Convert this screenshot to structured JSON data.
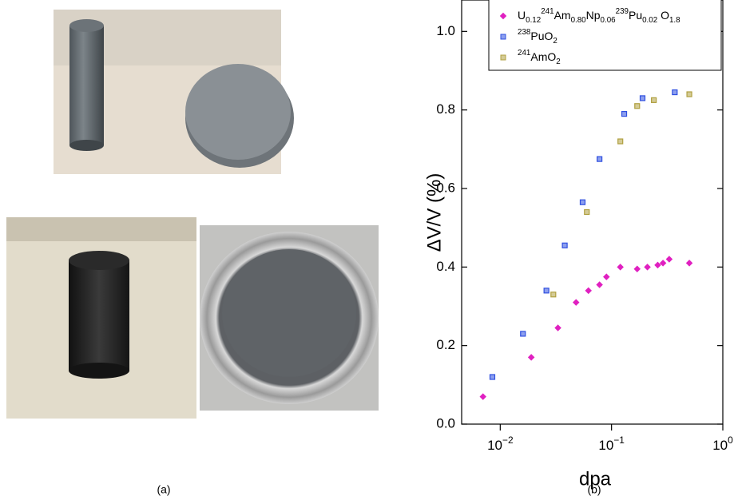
{
  "panels": {
    "a": "(a)",
    "b": "(b)"
  },
  "chart_data": {
    "type": "scatter",
    "xlabel": "dpa",
    "ylabel": "ΔV/V (%)",
    "xscale": "log",
    "xlim": [
      0.0045,
      1
    ],
    "ylim": [
      0,
      1.08
    ],
    "xticks": [
      {
        "value": 0.01,
        "label": "10^{−2}"
      },
      {
        "value": 0.1,
        "label": "10^{−1}"
      },
      {
        "value": 1,
        "label": "10^{0}"
      }
    ],
    "yticks": [
      {
        "value": 0,
        "label": "0.0"
      },
      0.2,
      0.4,
      0.6,
      0.8,
      {
        "value": 1,
        "label": "1.0"
      }
    ],
    "series": [
      {
        "name": "U_{0.12}^{241}Am_{0.80}Np_{0.06}^{239}Pu_{0.02} O_{1.8}",
        "color": "#e020c0",
        "marker": "diamond",
        "x": [
          0.007,
          0.019,
          0.033,
          0.048,
          0.062,
          0.078,
          0.09,
          0.12,
          0.17,
          0.21,
          0.26,
          0.29,
          0.33,
          0.5
        ],
        "values": [
          0.07,
          0.17,
          0.245,
          0.31,
          0.34,
          0.355,
          0.375,
          0.4,
          0.395,
          0.4,
          0.405,
          0.41,
          0.42,
          0.41
        ]
      },
      {
        "name": "^{238}PuO_{2}",
        "color": "#3050e0",
        "marker": "square",
        "x": [
          0.0085,
          0.016,
          0.026,
          0.038,
          0.055,
          0.078,
          0.13,
          0.19,
          0.37
        ],
        "values": [
          0.12,
          0.23,
          0.34,
          0.455,
          0.565,
          0.675,
          0.79,
          0.83,
          0.845
        ]
      },
      {
        "name": "^{241}AmO_{2}",
        "color": "#b0a040",
        "marker": "square",
        "x": [
          0.03,
          0.06,
          0.12,
          0.17,
          0.24,
          0.5
        ],
        "values": [
          0.33,
          0.54,
          0.72,
          0.81,
          0.825,
          0.84
        ]
      }
    ]
  }
}
